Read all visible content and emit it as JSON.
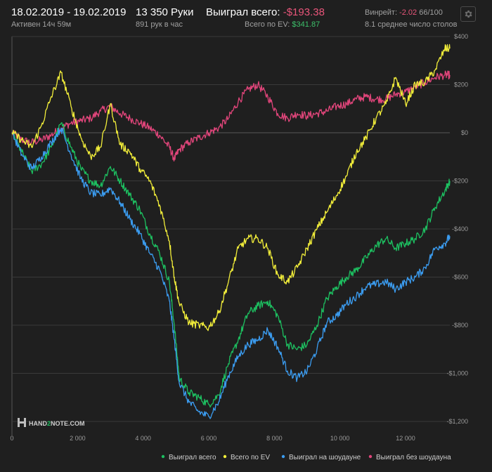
{
  "header": {
    "date_range": "18.02.2019 - 19.02.2019",
    "active": "Активен 14ч 59м",
    "hands": "13 350 Руки",
    "hands_per_hour": "891 рук в час",
    "won_label": "Выиграл всего:",
    "won_value": "-$193.38",
    "ev_label": "Всего по EV:",
    "ev_value": "$341.87",
    "winrate_label": "Винрейт:",
    "winrate_value": "-2.02",
    "winrate_unit": "66/100",
    "avg_tables": "8.1 среднее число столов"
  },
  "brand": {
    "text_a": "HAND",
    "text_b": "2",
    "text_c": "NOTE.COM"
  },
  "colors": {
    "background": "#1f1f1f",
    "won": "#1dbf60",
    "ev": "#f2ee3a",
    "showdown": "#3b9cf0",
    "nonshowdown": "#e0457a",
    "negative": "#e8557a",
    "positive": "#3cc06a"
  },
  "icons": {
    "settings": "gear-icon",
    "logo": "h2n-logo-icon"
  },
  "chart_data": {
    "type": "line",
    "xlabel": "",
    "ylabel": "",
    "xlim": [
      0,
      13350
    ],
    "ylim": [
      -1200,
      400
    ],
    "x_ticks": [
      {
        "value": 0,
        "label": "0"
      },
      {
        "value": 2000,
        "label": "2 000"
      },
      {
        "value": 4000,
        "label": "4 000"
      },
      {
        "value": 6000,
        "label": "6 000"
      },
      {
        "value": 8000,
        "label": "8 000"
      },
      {
        "value": 10000,
        "label": "10 000"
      },
      {
        "value": 12000,
        "label": "12 000"
      }
    ],
    "y_ticks": [
      {
        "value": 400,
        "label": "$400"
      },
      {
        "value": 200,
        "label": "$200"
      },
      {
        "value": 0,
        "label": "$0"
      },
      {
        "value": -200,
        "label": "-$200"
      },
      {
        "value": -400,
        "label": "-$400"
      },
      {
        "value": -600,
        "label": "-$600"
      },
      {
        "value": -800,
        "label": "-$800"
      },
      {
        "value": -1000,
        "label": "-$1,000"
      },
      {
        "value": -1200,
        "label": "-$1,200"
      }
    ],
    "grid": true,
    "legend_position": "bottom-right",
    "series": [
      {
        "name": "Выиграл всего",
        "color": "#1dbf60",
        "x": [
          0,
          300,
          600,
          900,
          1200,
          1500,
          1800,
          2100,
          2400,
          2700,
          3000,
          3300,
          3600,
          3900,
          4200,
          4500,
          4800,
          4950,
          5100,
          5400,
          5700,
          6000,
          6300,
          6600,
          6900,
          7200,
          7500,
          7800,
          8100,
          8400,
          8700,
          9000,
          9300,
          9600,
          9900,
          10200,
          10500,
          10800,
          11100,
          11400,
          11700,
          12000,
          12300,
          12600,
          12900,
          13200,
          13350
        ],
        "y": [
          0,
          -80,
          -160,
          -130,
          -60,
          40,
          -60,
          -150,
          -200,
          -220,
          -140,
          -200,
          -260,
          -320,
          -420,
          -500,
          -620,
          -800,
          -1020,
          -1080,
          -1100,
          -1130,
          -1090,
          -960,
          -860,
          -750,
          -720,
          -700,
          -760,
          -880,
          -900,
          -880,
          -800,
          -690,
          -640,
          -600,
          -570,
          -520,
          -470,
          -440,
          -480,
          -460,
          -440,
          -400,
          -310,
          -240,
          -200
        ]
      },
      {
        "name": "Всего по EV",
        "color": "#f2ee3a",
        "x": [
          0,
          300,
          600,
          900,
          1200,
          1500,
          1800,
          2100,
          2400,
          2700,
          3000,
          3300,
          3600,
          3900,
          4200,
          4500,
          4800,
          4950,
          5100,
          5400,
          5700,
          6000,
          6300,
          6600,
          6900,
          7200,
          7500,
          7800,
          8100,
          8400,
          8700,
          9000,
          9300,
          9600,
          9900,
          10200,
          10500,
          10800,
          11100,
          11400,
          11700,
          12000,
          12300,
          12600,
          12900,
          13200,
          13350
        ],
        "y": [
          0,
          -30,
          -60,
          30,
          150,
          250,
          110,
          -20,
          -100,
          -60,
          120,
          -50,
          -80,
          -150,
          -200,
          -300,
          -450,
          -600,
          -710,
          -790,
          -800,
          -810,
          -750,
          -620,
          -480,
          -440,
          -440,
          -480,
          -590,
          -620,
          -560,
          -480,
          -400,
          -330,
          -260,
          -180,
          -80,
          -20,
          60,
          120,
          230,
          120,
          200,
          210,
          260,
          350,
          350
        ]
      },
      {
        "name": "Выиграл на шоудауне",
        "color": "#3b9cf0",
        "x": [
          0,
          300,
          600,
          900,
          1200,
          1500,
          1800,
          2100,
          2400,
          2700,
          3000,
          3300,
          3600,
          3900,
          4200,
          4500,
          4800,
          4950,
          5100,
          5400,
          5700,
          6000,
          6300,
          6600,
          6900,
          7200,
          7500,
          7800,
          8100,
          8400,
          8700,
          9000,
          9300,
          9600,
          9900,
          10200,
          10500,
          10800,
          11100,
          11400,
          11700,
          12000,
          12300,
          12600,
          12900,
          13200,
          13350
        ],
        "y": [
          0,
          -90,
          -150,
          -100,
          -40,
          20,
          -90,
          -190,
          -250,
          -260,
          -230,
          -290,
          -360,
          -420,
          -500,
          -570,
          -700,
          -860,
          -1040,
          -1120,
          -1160,
          -1180,
          -1120,
          -1010,
          -930,
          -880,
          -860,
          -820,
          -890,
          -990,
          -1020,
          -990,
          -900,
          -790,
          -760,
          -710,
          -680,
          -640,
          -630,
          -620,
          -650,
          -620,
          -600,
          -560,
          -480,
          -460,
          -430
        ]
      },
      {
        "name": "Выиграл без шоудауна",
        "color": "#e0457a",
        "x": [
          0,
          300,
          600,
          900,
          1200,
          1500,
          1800,
          2100,
          2400,
          2700,
          3000,
          3300,
          3600,
          3900,
          4200,
          4500,
          4800,
          4950,
          5100,
          5400,
          5700,
          6000,
          6300,
          6600,
          6900,
          7200,
          7500,
          7800,
          8100,
          8400,
          8700,
          9000,
          9300,
          9600,
          9900,
          10200,
          10500,
          10800,
          11100,
          11400,
          11700,
          12000,
          12300,
          12600,
          12900,
          13200,
          13350
        ],
        "y": [
          0,
          -30,
          -40,
          -30,
          -10,
          20,
          40,
          50,
          60,
          90,
          110,
          80,
          60,
          40,
          20,
          -10,
          -60,
          -110,
          -70,
          -40,
          -20,
          0,
          20,
          60,
          130,
          180,
          200,
          150,
          80,
          60,
          80,
          70,
          80,
          90,
          110,
          120,
          140,
          150,
          140,
          140,
          160,
          170,
          190,
          210,
          230,
          240,
          240
        ]
      }
    ]
  }
}
